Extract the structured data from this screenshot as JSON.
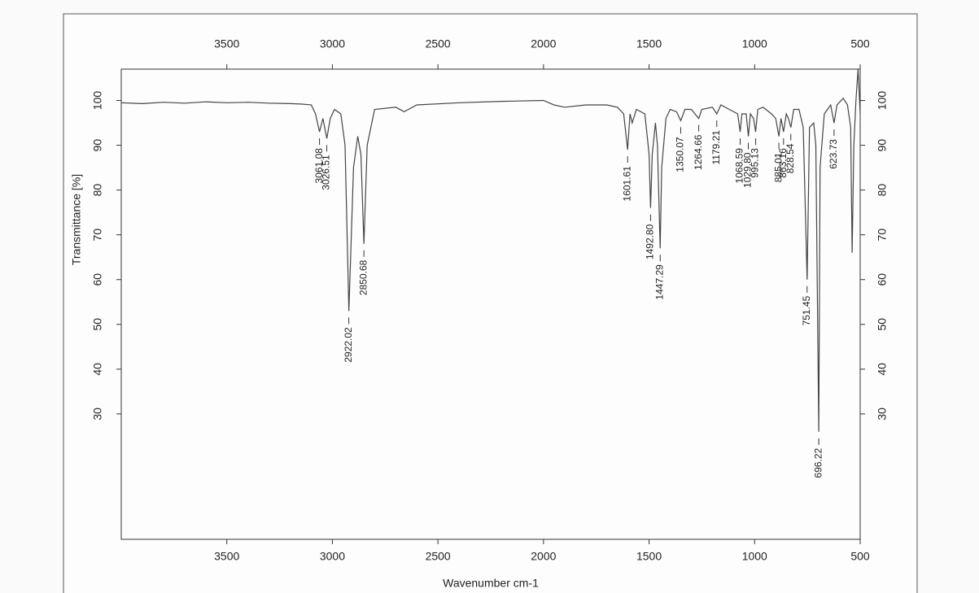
{
  "chart_data": {
    "type": "line",
    "xlabel": "Wavenumber cm-1",
    "ylabel": "Transmittance [%]",
    "xlim": [
      4000,
      500
    ],
    "ylim": [
      2,
      107
    ],
    "xticks": [
      3500,
      3000,
      2500,
      2000,
      1500,
      1000,
      500
    ],
    "yticks": [
      30,
      40,
      50,
      60,
      70,
      80,
      90,
      100
    ],
    "color": "#444444",
    "x": [
      4000,
      3900,
      3800,
      3700,
      3600,
      3500,
      3400,
      3300,
      3200,
      3150,
      3100,
      3080,
      3061.08,
      3045,
      3026.51,
      3010,
      2990,
      2960,
      2940,
      2922.02,
      2900,
      2880,
      2865,
      2850.68,
      2835,
      2800,
      2700,
      2660,
      2600,
      2400,
      2200,
      2000,
      1950,
      1900,
      1800,
      1700,
      1650,
      1620,
      1601.61,
      1590,
      1580,
      1560,
      1520,
      1500,
      1492.8,
      1485,
      1470,
      1460,
      1447.29,
      1440,
      1420,
      1400,
      1370,
      1350.07,
      1330,
      1300,
      1264.66,
      1250,
      1200,
      1179.21,
      1160,
      1120,
      1080,
      1068.59,
      1060,
      1040,
      1029.8,
      1020,
      1005,
      995.13,
      985,
      960,
      920,
      900,
      885.01,
      875,
      863.16,
      850,
      840,
      828.54,
      815,
      790,
      770,
      751.45,
      740,
      720,
      710,
      696.22,
      690,
      670,
      640,
      623.73,
      610,
      580,
      560,
      545,
      538,
      530,
      520,
      510,
      500
    ],
    "values": [
      99.5,
      99.3,
      99.6,
      99.4,
      99.7,
      99.5,
      99.6,
      99.4,
      99.3,
      99.2,
      99,
      97,
      93,
      96,
      91.5,
      96,
      98,
      97,
      90,
      53,
      85,
      92,
      88,
      68,
      90,
      98,
      98.5,
      97.5,
      99,
      99.5,
      99.8,
      100,
      99,
      98.5,
      99,
      99,
      98.5,
      97,
      89,
      97,
      95,
      98,
      97,
      88,
      76,
      88,
      95,
      90,
      67,
      85,
      96,
      98,
      97.5,
      95.5,
      98,
      98,
      96,
      98,
      98.5,
      97,
      99,
      98,
      97,
      93,
      97,
      97,
      92,
      97,
      96,
      93,
      98,
      98.5,
      97,
      96,
      92,
      96,
      93,
      97,
      96,
      94,
      98,
      98,
      94,
      60,
      94,
      95,
      90,
      26,
      85,
      97,
      99,
      95,
      99,
      100.5,
      99,
      94,
      66,
      90,
      100,
      107,
      97
    ],
    "peaks": [
      {
        "x": 3061.08,
        "y": 93,
        "label": "3061.08"
      },
      {
        "x": 3026.51,
        "y": 91.5,
        "label": "3026.51"
      },
      {
        "x": 2922.02,
        "y": 53,
        "label": "2922.02"
      },
      {
        "x": 2850.68,
        "y": 68,
        "label": "2850.68"
      },
      {
        "x": 1601.61,
        "y": 89,
        "label": "1601.61"
      },
      {
        "x": 1492.8,
        "y": 76,
        "label": "1492.80"
      },
      {
        "x": 1447.29,
        "y": 67,
        "label": "1447.29"
      },
      {
        "x": 1350.07,
        "y": 95.5,
        "label": "1350.07"
      },
      {
        "x": 1264.66,
        "y": 96,
        "label": "1264.66"
      },
      {
        "x": 1179.21,
        "y": 97,
        "label": "1179.21"
      },
      {
        "x": 1068.59,
        "y": 93,
        "label": "1068.59"
      },
      {
        "x": 1029.8,
        "y": 92,
        "label": "1029.80"
      },
      {
        "x": 995.13,
        "y": 93,
        "label": "995.13"
      },
      {
        "x": 885.01,
        "y": 92,
        "label": "885.01"
      },
      {
        "x": 863.16,
        "y": 93,
        "label": "863.16"
      },
      {
        "x": 828.54,
        "y": 94,
        "label": "828.54"
      },
      {
        "x": 751.45,
        "y": 60,
        "label": "751.45"
      },
      {
        "x": 696.22,
        "y": 26,
        "label": "696.22"
      },
      {
        "x": 623.73,
        "y": 95,
        "label": "623.73"
      }
    ]
  }
}
